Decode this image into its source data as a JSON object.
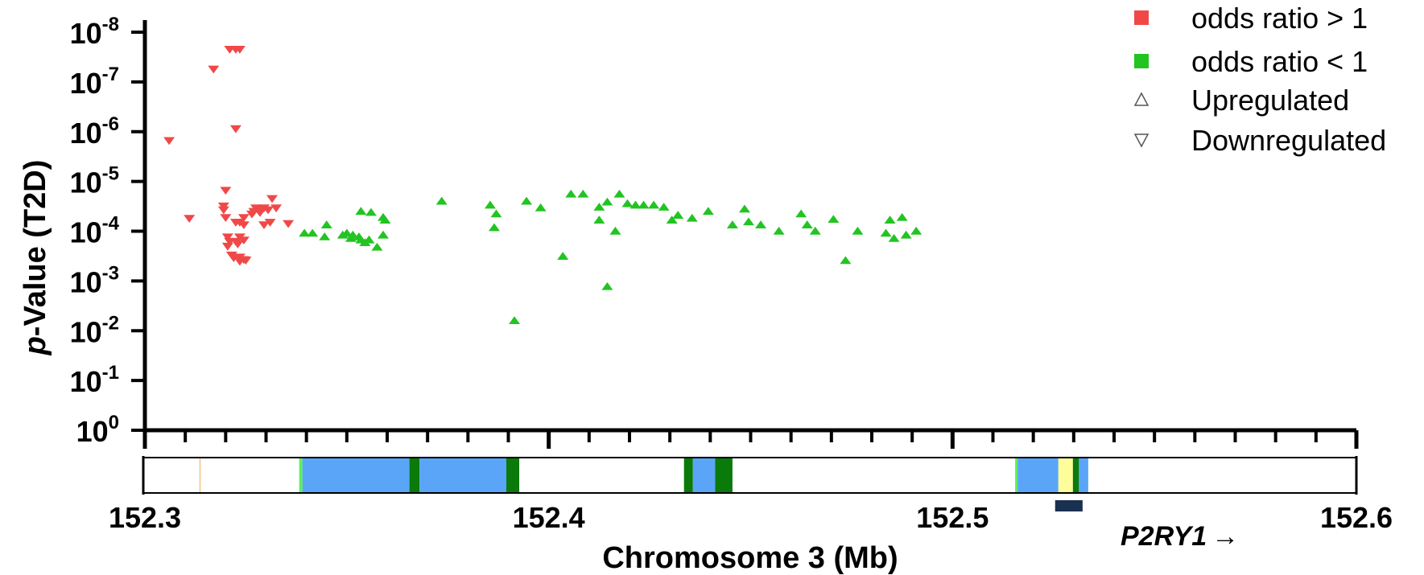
{
  "chart_data": {
    "type": "scatter",
    "ylabel_prefix": "p",
    "ylabel_rest": "-Value (T2D)",
    "xlabel": "Chromosome 3 (Mb)",
    "xlim": [
      152.3,
      152.6
    ],
    "x_ticks": [
      "152.3",
      "152.4",
      "152.5",
      "152.6"
    ],
    "y_scale": "log",
    "y_ticks": [
      {
        "base": "10",
        "exp": "-8"
      },
      {
        "base": "10",
        "exp": "-7"
      },
      {
        "base": "10",
        "exp": "-6"
      },
      {
        "base": "10",
        "exp": "-5"
      },
      {
        "base": "10",
        "exp": "-4"
      },
      {
        "base": "10",
        "exp": "-3"
      },
      {
        "base": "10",
        "exp": "-2"
      },
      {
        "base": "10",
        "exp": "-1"
      },
      {
        "base": "10",
        "exp": "0"
      }
    ],
    "legend": [
      {
        "label": "odds ratio > 1",
        "marker": "square",
        "color": "#f04848"
      },
      {
        "label": "odds ratio < 1",
        "marker": "square",
        "color": "#22c422"
      },
      {
        "label": "Upregulated",
        "marker": "triangle-up-open",
        "color": "#555555"
      },
      {
        "label": "Downregulated",
        "marker": "triangle-down-open",
        "color": "#555555"
      }
    ],
    "legend_position": "top-right",
    "gene_label": "P2RY1",
    "gene_arrow": "→",
    "gene_span": [
      152.5254,
      152.5322
    ],
    "colors": {
      "red": "#f04848",
      "green": "#22c422",
      "blue": "#5aa5f8",
      "darkgreen": "#0a7a0a",
      "lightgreen": "#5cf05c",
      "yellow": "#fdfd9a",
      "orange": "#f5c080",
      "gene": "#1a3050"
    },
    "series": [
      {
        "name": "odds ratio > 1",
        "marker": "triangle-down",
        "color": "#f04848",
        "points": [
          [
            152.306,
            1.5e-06
          ],
          [
            152.311,
            5.5e-05
          ],
          [
            152.317,
            5.5e-08
          ],
          [
            152.321,
            2.2e-08
          ],
          [
            152.3225,
            2.2e-08
          ],
          [
            152.3235,
            2.2e-08
          ],
          [
            152.3225,
            8.7e-07
          ],
          [
            152.32,
            1.5e-05
          ],
          [
            152.3195,
            3.1e-05
          ],
          [
            152.3195,
            3.7e-05
          ],
          [
            152.32,
            5.3e-05
          ],
          [
            152.3225,
            6.6e-05
          ],
          [
            152.3235,
            6.6e-05
          ],
          [
            152.3245,
            5.3e-05
          ],
          [
            152.3265,
            4.5e-05
          ],
          [
            152.327,
            4e-05
          ],
          [
            152.3275,
            3.4e-05
          ],
          [
            152.328,
            3.7e-05
          ],
          [
            152.3285,
            4.2e-05
          ],
          [
            152.3295,
            3.4e-05
          ],
          [
            152.3305,
            3.7e-05
          ],
          [
            152.3315,
            2.2e-05
          ],
          [
            152.3325,
            3.4e-05
          ],
          [
            152.331,
            6.6e-05
          ],
          [
            152.3295,
            7.4e-05
          ],
          [
            152.3245,
            7.4e-05
          ],
          [
            152.3205,
            0.00013
          ],
          [
            152.321,
            0.00016
          ],
          [
            152.3225,
            0.00016
          ],
          [
            152.3205,
            0.0002
          ],
          [
            152.323,
            0.00018
          ],
          [
            152.3235,
            0.00013
          ],
          [
            152.3245,
            0.00015
          ],
          [
            152.3215,
            0.0003
          ],
          [
            152.322,
            0.00034
          ],
          [
            152.3235,
            0.00033
          ],
          [
            152.3245,
            0.00037
          ],
          [
            152.325,
            0.00038
          ],
          [
            152.3235,
            0.0004
          ],
          [
            152.3355,
            7e-05
          ]
        ]
      },
      {
        "name": "odds ratio < 1",
        "marker": "triangle-up",
        "color": "#22c422",
        "points": [
          [
            152.3395,
            0.00011
          ],
          [
            152.3415,
            0.00011
          ],
          [
            152.345,
            7.5e-05
          ],
          [
            152.3445,
            0.00013
          ],
          [
            152.349,
            0.00012
          ],
          [
            152.35,
            0.00011
          ],
          [
            152.3515,
            0.00012
          ],
          [
            152.351,
            0.00014
          ],
          [
            152.353,
            0.00013
          ],
          [
            152.3535,
            0.00015
          ],
          [
            152.3555,
            0.00015
          ],
          [
            152.3545,
            0.00017
          ],
          [
            152.3575,
            0.00021
          ],
          [
            152.3535,
            4e-05
          ],
          [
            152.356,
            4.2e-05
          ],
          [
            152.359,
            5.3e-05
          ],
          [
            152.3595,
            6e-05
          ],
          [
            152.359,
            0.00012
          ],
          [
            152.3735,
            2.5e-05
          ],
          [
            152.3855,
            3e-05
          ],
          [
            152.387,
            4.5e-05
          ],
          [
            152.3865,
            8.5e-05
          ],
          [
            152.3915,
            0.0063
          ],
          [
            152.3945,
            2.5e-05
          ],
          [
            152.398,
            3.4e-05
          ],
          [
            152.4035,
            0.00032
          ],
          [
            152.4055,
            1.8e-05
          ],
          [
            152.4085,
            1.8e-05
          ],
          [
            152.4125,
            3.3e-05
          ],
          [
            152.4145,
            2.6e-05
          ],
          [
            152.4175,
            1.8e-05
          ],
          [
            152.4195,
            2.8e-05
          ],
          [
            152.4145,
            0.0013
          ],
          [
            152.4165,
            0.0001
          ],
          [
            152.4125,
            6e-05
          ],
          [
            152.4215,
            3e-05
          ],
          [
            152.4235,
            3e-05
          ],
          [
            152.426,
            3e-05
          ],
          [
            152.4285,
            3.3e-05
          ],
          [
            152.4305,
            6e-05
          ],
          [
            152.432,
            4.8e-05
          ],
          [
            152.4355,
            5.5e-05
          ],
          [
            152.4395,
            4e-05
          ],
          [
            152.4455,
            7.5e-05
          ],
          [
            152.4495,
            6.5e-05
          ],
          [
            152.4485,
            3.6e-05
          ],
          [
            152.4525,
            7.5e-05
          ],
          [
            152.457,
            0.0001
          ],
          [
            152.4625,
            4.5e-05
          ],
          [
            152.464,
            7.5e-05
          ],
          [
            152.466,
            0.0001
          ],
          [
            152.4705,
            5.8e-05
          ],
          [
            152.4735,
            0.00039
          ],
          [
            152.4765,
            0.0001
          ],
          [
            152.4845,
            6e-05
          ],
          [
            152.4835,
            0.00011
          ],
          [
            152.4855,
            0.00014
          ],
          [
            152.4875,
            5.3e-05
          ],
          [
            152.4885,
            0.00012
          ],
          [
            152.491,
            0.0001
          ]
        ]
      }
    ],
    "track_segments": [
      {
        "x0": 152.3135,
        "x1": 152.3138,
        "color": "#f5c080"
      },
      {
        "x0": 152.3382,
        "x1": 152.339,
        "color": "#5cf05c"
      },
      {
        "x0": 152.339,
        "x1": 152.3655,
        "color": "#5aa5f8"
      },
      {
        "x0": 152.3655,
        "x1": 152.368,
        "color": "#0a7a0a"
      },
      {
        "x0": 152.368,
        "x1": 152.3895,
        "color": "#5aa5f8"
      },
      {
        "x0": 152.3895,
        "x1": 152.3927,
        "color": "#0a7a0a"
      },
      {
        "x0": 152.4335,
        "x1": 152.4357,
        "color": "#0a7a0a"
      },
      {
        "x0": 152.4357,
        "x1": 152.4412,
        "color": "#5aa5f8"
      },
      {
        "x0": 152.4412,
        "x1": 152.4455,
        "color": "#0a7a0a"
      },
      {
        "x0": 152.5155,
        "x1": 152.5161,
        "color": "#5cf05c"
      },
      {
        "x0": 152.5161,
        "x1": 152.5262,
        "color": "#5aa5f8"
      },
      {
        "x0": 152.5262,
        "x1": 152.5298,
        "color": "#fdfd9a"
      },
      {
        "x0": 152.5298,
        "x1": 152.5313,
        "color": "#0a7a0a"
      },
      {
        "x0": 152.5313,
        "x1": 152.5336,
        "color": "#5aa5f8"
      }
    ]
  }
}
